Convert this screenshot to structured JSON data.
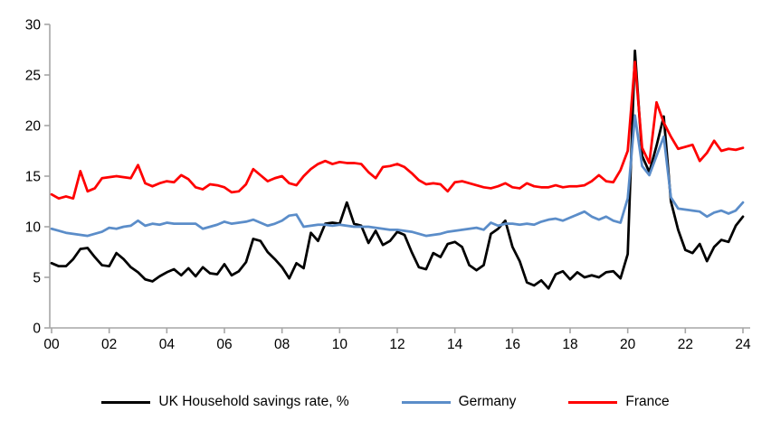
{
  "chart_data": {
    "type": "line",
    "title": "",
    "xlabel": "",
    "ylabel": "",
    "ylim": [
      0,
      30
    ],
    "grid": false,
    "legend_position": "bottom",
    "axis_color": "#a6a6a6",
    "x_axis": {
      "start": "2000Q1",
      "end": "2024Q1",
      "frequency": "quarterly"
    },
    "y_ticks": [
      0,
      5,
      10,
      15,
      20,
      25,
      30
    ],
    "y_tick_labels": [
      "0",
      "5",
      "10",
      "15",
      "20",
      "25",
      "30"
    ],
    "x_tick_years": [
      0,
      2,
      4,
      6,
      8,
      10,
      12,
      14,
      16,
      18,
      20,
      22,
      24
    ],
    "x_tick_labels": [
      "00",
      "02",
      "04",
      "06",
      "08",
      "10",
      "12",
      "14",
      "16",
      "18",
      "20",
      "22",
      "24"
    ],
    "series": [
      {
        "key": "uk",
        "name": "UK Household savings rate, %",
        "color": "#000000",
        "values": [
          6.4,
          6.1,
          6.1,
          6.8,
          7.8,
          7.9,
          7.0,
          6.2,
          6.1,
          7.4,
          6.8,
          6.0,
          5.5,
          4.8,
          4.6,
          5.1,
          5.5,
          5.8,
          5.2,
          5.9,
          5.1,
          6.0,
          5.4,
          5.3,
          6.3,
          5.2,
          5.6,
          6.5,
          8.8,
          8.6,
          7.5,
          6.8,
          6.0,
          4.9,
          6.4,
          5.9,
          9.4,
          8.6,
          10.3,
          10.4,
          10.3,
          12.4,
          10.3,
          10.1,
          8.4,
          9.6,
          8.2,
          8.6,
          9.5,
          9.2,
          7.5,
          6.0,
          5.8,
          7.4,
          7.0,
          8.3,
          8.5,
          8.0,
          6.2,
          5.7,
          6.2,
          9.3,
          9.8,
          10.6,
          8.0,
          6.6,
          4.5,
          4.2,
          4.7,
          3.9,
          5.3,
          5.6,
          4.8,
          5.5,
          5.0,
          5.2,
          5.0,
          5.5,
          5.6,
          4.9,
          7.3,
          27.4,
          17.0,
          15.4,
          18.0,
          20.9,
          12.5,
          9.7,
          7.7,
          7.4,
          8.3,
          6.6,
          8.0,
          8.7,
          8.5,
          10.1,
          11.0
        ]
      },
      {
        "key": "germany",
        "name": "Germany",
        "color": "#5b8dc9",
        "values": [
          9.8,
          9.6,
          9.4,
          9.3,
          9.2,
          9.1,
          9.3,
          9.5,
          9.9,
          9.8,
          10.0,
          10.1,
          10.6,
          10.1,
          10.3,
          10.2,
          10.4,
          10.3,
          10.3,
          10.3,
          10.3,
          9.8,
          10.0,
          10.2,
          10.5,
          10.3,
          10.4,
          10.5,
          10.7,
          10.4,
          10.1,
          10.3,
          10.6,
          11.1,
          11.2,
          10.0,
          10.1,
          10.2,
          10.2,
          10.1,
          10.2,
          10.1,
          10.0,
          10.0,
          10.0,
          9.9,
          9.8,
          9.7,
          9.7,
          9.6,
          9.5,
          9.3,
          9.1,
          9.2,
          9.3,
          9.5,
          9.6,
          9.7,
          9.8,
          9.9,
          9.7,
          10.4,
          10.1,
          10.3,
          10.3,
          10.2,
          10.3,
          10.2,
          10.5,
          10.7,
          10.8,
          10.6,
          10.9,
          11.2,
          11.5,
          11.0,
          10.7,
          11.0,
          10.6,
          10.4,
          12.8,
          21.0,
          16.0,
          15.1,
          17.0,
          18.9,
          12.9,
          11.8,
          11.7,
          11.6,
          11.5,
          11.0,
          11.4,
          11.6,
          11.3,
          11.6,
          12.4
        ]
      },
      {
        "key": "france",
        "name": "France",
        "color": "#ff0000",
        "values": [
          13.2,
          12.8,
          13.0,
          12.8,
          15.5,
          13.5,
          13.8,
          14.8,
          14.9,
          15.0,
          14.9,
          14.8,
          16.1,
          14.3,
          14.0,
          14.3,
          14.5,
          14.4,
          15.1,
          14.7,
          13.9,
          13.7,
          14.2,
          14.1,
          13.9,
          13.4,
          13.5,
          14.2,
          15.7,
          15.1,
          14.5,
          14.8,
          15.0,
          14.3,
          14.1,
          15.0,
          15.7,
          16.2,
          16.5,
          16.2,
          16.4,
          16.3,
          16.3,
          16.2,
          15.4,
          14.8,
          15.9,
          16.0,
          16.2,
          15.9,
          15.3,
          14.6,
          14.2,
          14.3,
          14.2,
          13.5,
          14.4,
          14.5,
          14.3,
          14.1,
          13.9,
          13.8,
          14.0,
          14.3,
          13.9,
          13.8,
          14.3,
          14.0,
          13.9,
          13.9,
          14.1,
          13.9,
          14.0,
          14.0,
          14.1,
          14.5,
          15.1,
          14.5,
          14.4,
          15.6,
          17.5,
          26.3,
          17.8,
          16.3,
          22.3,
          20.3,
          18.9,
          17.7,
          17.9,
          18.1,
          16.5,
          17.3,
          18.5,
          17.5,
          17.7,
          17.6,
          17.8
        ]
      }
    ]
  }
}
